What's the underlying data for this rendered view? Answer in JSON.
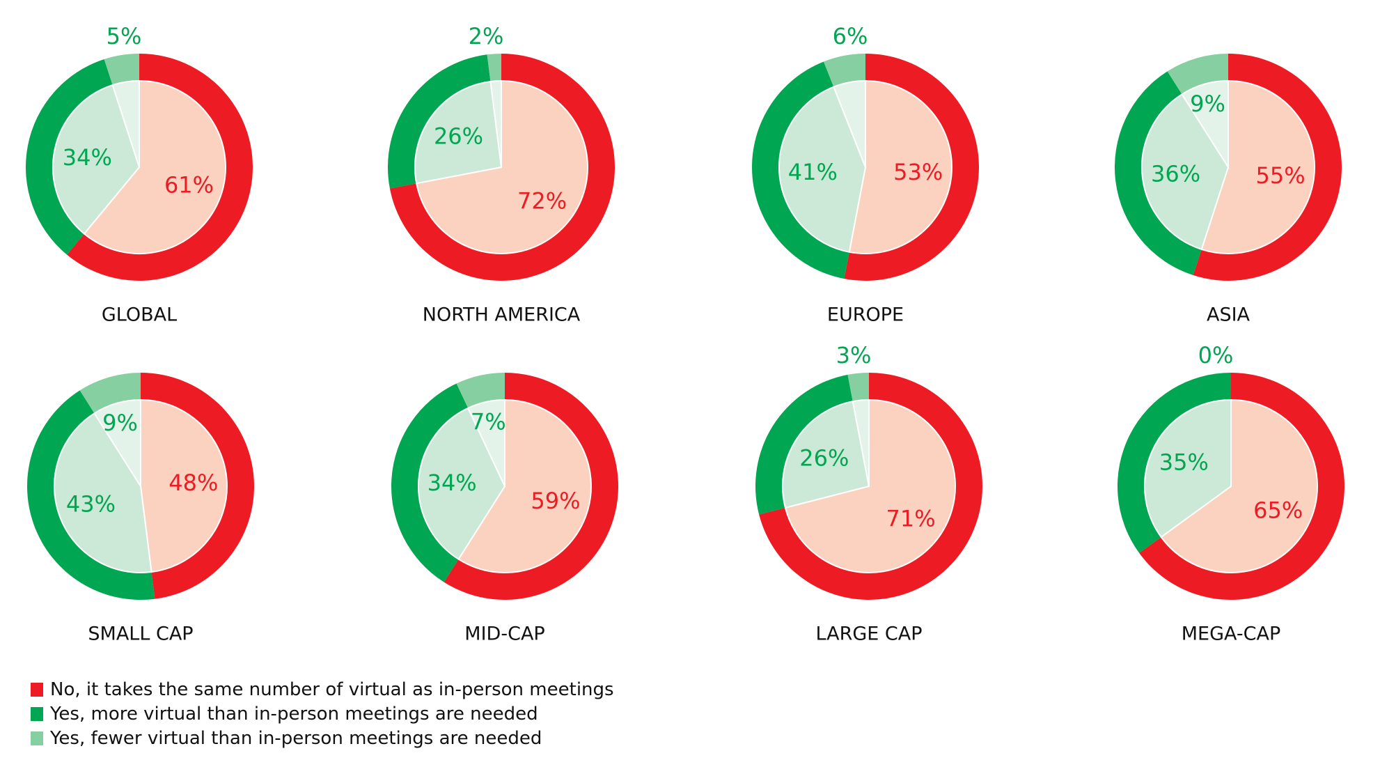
{
  "colors": {
    "no_outer": "#ed1c24",
    "no_inner": "#fbd2c0",
    "more_outer": "#00a651",
    "more_inner": "#cce8d6",
    "fewer_outer": "#86cfa0",
    "fewer_inner": "#e4f3e9",
    "no_label": "#ed1c24",
    "yes_label": "#00a651"
  },
  "legend": [
    {
      "label": "No, it takes the same number of virtual as in-person meetings",
      "color": "#ed1c24"
    },
    {
      "label": "Yes, more virtual than in-person meetings are needed",
      "color": "#00a651"
    },
    {
      "label": "Yes, fewer virtual than in-person meetings are needed",
      "color": "#86cfa0"
    }
  ],
  "chart_data": [
    {
      "type": "pie",
      "segment": "GLOBAL",
      "labels": [
        "No, it takes the same number of virtual as in-person meetings",
        "Yes, more virtual than in-person meetings are needed",
        "Yes, fewer virtual than in-person meetings are needed"
      ],
      "values": [
        61,
        34,
        5
      ]
    },
    {
      "type": "pie",
      "segment": "NORTH AMERICA",
      "labels": [
        "No, it takes the same number of virtual as in-person meetings",
        "Yes, more virtual than in-person meetings are needed",
        "Yes, fewer virtual than in-person meetings are needed"
      ],
      "values": [
        72,
        26,
        2
      ]
    },
    {
      "type": "pie",
      "segment": "EUROPE",
      "labels": [
        "No, it takes the same number of virtual as in-person meetings",
        "Yes, more virtual than in-person meetings are needed",
        "Yes, fewer virtual than in-person meetings are needed"
      ],
      "values": [
        53,
        41,
        6
      ]
    },
    {
      "type": "pie",
      "segment": "ASIA",
      "labels": [
        "No, it takes the same number of virtual as in-person meetings",
        "Yes, more virtual than in-person meetings are needed",
        "Yes, fewer virtual than in-person meetings are needed"
      ],
      "values": [
        55,
        36,
        9
      ]
    },
    {
      "type": "pie",
      "segment": "SMALL CAP",
      "labels": [
        "No, it takes the same number of virtual as in-person meetings",
        "Yes, more virtual than in-person meetings are needed",
        "Yes, fewer virtual than in-person meetings are needed"
      ],
      "values": [
        48,
        43,
        9
      ]
    },
    {
      "type": "pie",
      "segment": "MID-CAP",
      "labels": [
        "No, it takes the same number of virtual as in-person meetings",
        "Yes, more virtual than in-person meetings are needed",
        "Yes, fewer virtual than in-person meetings are needed"
      ],
      "values": [
        59,
        34,
        7
      ]
    },
    {
      "type": "pie",
      "segment": "LARGE CAP",
      "labels": [
        "No, it takes the same number of virtual as in-person meetings",
        "Yes, more virtual than in-person meetings are needed",
        "Yes, fewer virtual than in-person meetings are needed"
      ],
      "values": [
        71,
        26,
        3
      ]
    },
    {
      "type": "pie",
      "segment": "MEGA-CAP",
      "labels": [
        "No, it takes the same number of virtual as in-person meetings",
        "Yes, more virtual than in-person meetings are needed",
        "Yes, fewer virtual than in-person meetings are needed"
      ],
      "values": [
        65,
        35,
        0
      ]
    }
  ]
}
